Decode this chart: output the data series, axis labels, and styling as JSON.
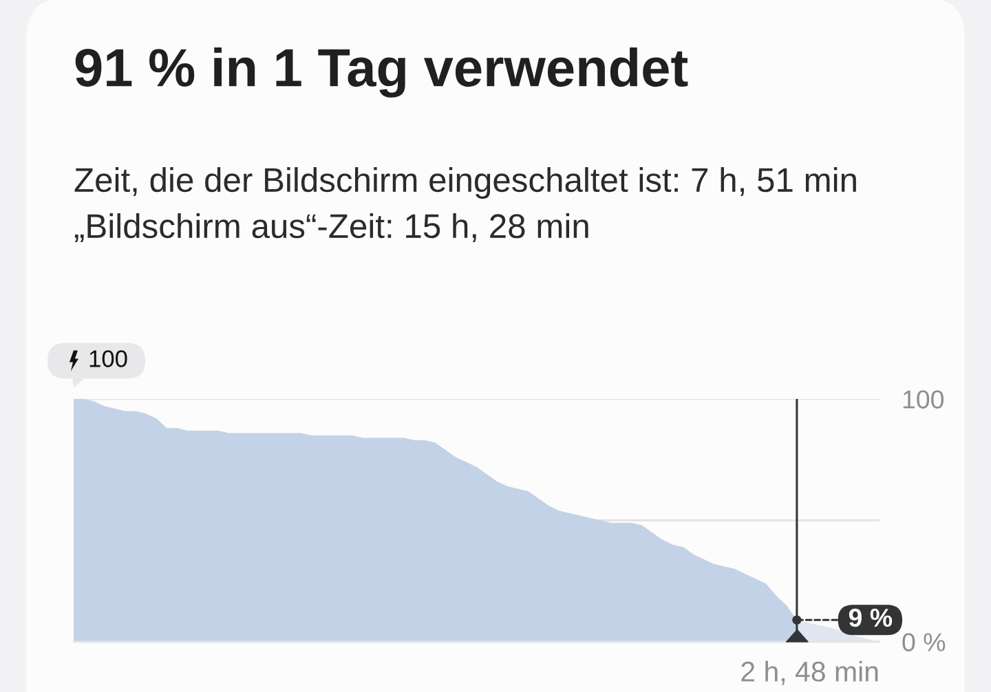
{
  "chart_data": {
    "type": "area",
    "title": "91 % in 1 Tag verwendet",
    "subtitle": "Zeit, die der Bildschirm eingeschaltet ist: 7 h, 51 min\n„Bildschirm aus“-Zeit: 15 h, 28 min",
    "categories": [
      null,
      null,
      null,
      null,
      null,
      null,
      null,
      null,
      null,
      null,
      null,
      null,
      null,
      null,
      null,
      null,
      null,
      null,
      null,
      null,
      null,
      null,
      null,
      null,
      null,
      null,
      null,
      null,
      null,
      null,
      null,
      null,
      null,
      null,
      null,
      null,
      null,
      null,
      null,
      null,
      null,
      null,
      null,
      null,
      null,
      null,
      null,
      null,
      null,
      null,
      null,
      null,
      null,
      null,
      null,
      null,
      null,
      null,
      null,
      null,
      null,
      null,
      null,
      null,
      null,
      null,
      null,
      null,
      null,
      null,
      null,
      null,
      null,
      null,
      null,
      null,
      null,
      null,
      null
    ],
    "series": [
      {
        "color": "#c3d2e7",
        "values": [
          100,
          100,
          99,
          97,
          96,
          95,
          95,
          94,
          92,
          88,
          88,
          87,
          87,
          87,
          87,
          86,
          86,
          86,
          86,
          86,
          86,
          86,
          86,
          85,
          85,
          85,
          85,
          85,
          84,
          84,
          84,
          84,
          84,
          83,
          83,
          82,
          79,
          76,
          74,
          72,
          69,
          66,
          64,
          63,
          62,
          59,
          56,
          54,
          53,
          52,
          51,
          50,
          49,
          49,
          49,
          48,
          45,
          42,
          40,
          39,
          36,
          34,
          32,
          31,
          30,
          28,
          26,
          24,
          19,
          15,
          9,
          null,
          null,
          null,
          null,
          null,
          null,
          null,
          null
        ]
      },
      {
        "color": "#dfe6f1",
        "values": [
          null,
          null,
          null,
          null,
          null,
          null,
          null,
          null,
          null,
          null,
          null,
          null,
          null,
          null,
          null,
          null,
          null,
          null,
          null,
          null,
          null,
          null,
          null,
          null,
          null,
          null,
          null,
          null,
          null,
          null,
          null,
          null,
          null,
          null,
          null,
          null,
          null,
          null,
          null,
          null,
          null,
          null,
          null,
          null,
          null,
          null,
          null,
          null,
          null,
          null,
          null,
          null,
          null,
          null,
          null,
          null,
          null,
          null,
          null,
          null,
          null,
          null,
          null,
          null,
          null,
          null,
          null,
          null,
          null,
          null,
          9,
          8,
          7,
          6,
          5,
          3,
          2,
          1,
          0
        ]
      },
      {
        "type": "scatter",
        "color": "#333436",
        "marker": "circle",
        "values": [
          null,
          null,
          null,
          null,
          null,
          null,
          null,
          null,
          null,
          null,
          null,
          null,
          null,
          null,
          null,
          null,
          null,
          null,
          null,
          null,
          null,
          null,
          null,
          null,
          null,
          null,
          null,
          null,
          null,
          null,
          null,
          null,
          null,
          null,
          null,
          null,
          null,
          null,
          null,
          null,
          null,
          null,
          null,
          null,
          null,
          null,
          null,
          null,
          null,
          null,
          null,
          null,
          null,
          null,
          null,
          null,
          null,
          null,
          null,
          null,
          null,
          null,
          null,
          null,
          null,
          null,
          null,
          null,
          null,
          null,
          9,
          null,
          null,
          null,
          null,
          null,
          null,
          null,
          null
        ]
      }
    ],
    "ylim": [
      0,
      100
    ],
    "yticks": [
      {
        "value": 0,
        "label": "0 %"
      },
      100
    ],
    "grid": "y",
    "tick_labels": "y",
    "ref_lines": [
      {
        "axis": "y",
        "value": 50,
        "color": "#e4e4e6"
      }
    ],
    "annotations": [
      "100",
      "9 %",
      "2 h, 48 min"
    ]
  }
}
